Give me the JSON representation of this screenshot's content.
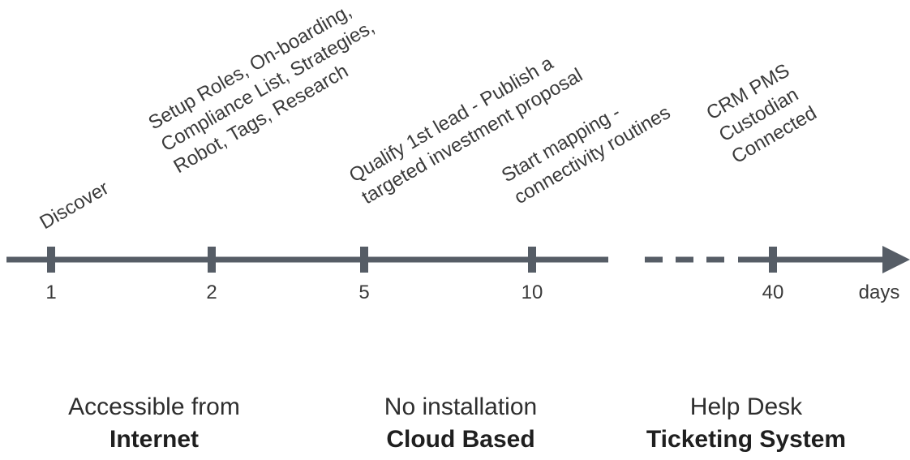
{
  "milestones": [
    {
      "day": "1",
      "lines": [
        "Discover"
      ]
    },
    {
      "day": "2",
      "lines": [
        "Setup Roles, On-boarding,",
        "Compliance List, Strategies,",
        "Robot, Tags, Research"
      ]
    },
    {
      "day": "5",
      "lines": [
        "Qualify 1st lead - Publish a",
        "targeted  investment proposal"
      ]
    },
    {
      "day": "10",
      "lines": [
        "Start mapping -",
        "connectivity routines"
      ]
    },
    {
      "day": "40",
      "lines": [
        "CRM PMS",
        "Custodian",
        "Connected"
      ]
    }
  ],
  "axis": {
    "unit_label": "days",
    "has_break": true,
    "arrow_end": true
  },
  "features": [
    {
      "caption": "Accessible from",
      "emphasis": "Internet"
    },
    {
      "caption": "No installation",
      "emphasis": "Cloud Based"
    },
    {
      "caption": "Help Desk",
      "emphasis": "Ticketing System"
    }
  ],
  "colors": {
    "axis": "#565d66",
    "text": "#3a3a3a"
  }
}
